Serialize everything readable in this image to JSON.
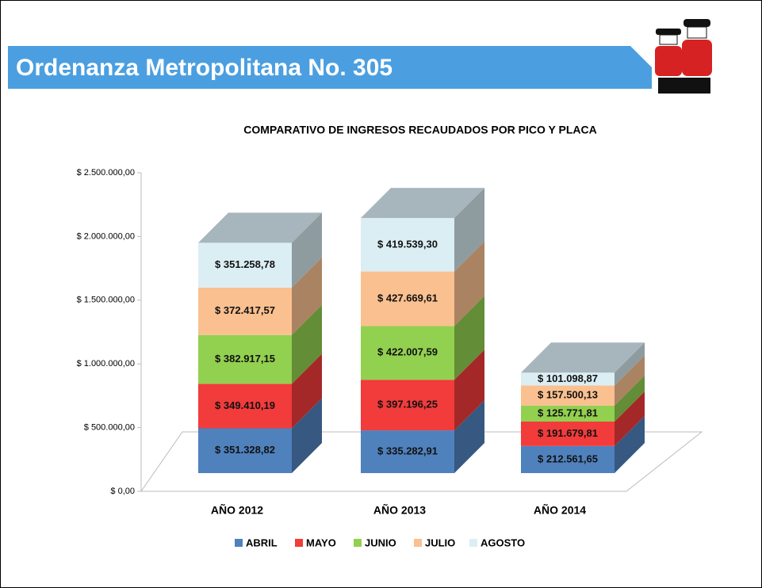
{
  "header": {
    "title": "Ordenanza Metropolitana No. 305"
  },
  "chart_data": {
    "type": "bar3d_stacked",
    "title": "COMPARATIVO DE INGRESOS RECAUDADOS POR PICO Y PLACA",
    "categories": [
      "AÑO 2012",
      "AÑO 2013",
      "AÑO 2014"
    ],
    "series": [
      {
        "name": "ABRIL",
        "color": "#4f81bd",
        "values": [
          351328.82,
          335282.91,
          212561.65
        ],
        "value_labels": [
          "$ 351.328,82",
          "$ 335.282,91",
          "$ 212.561,65"
        ]
      },
      {
        "name": "MAYO",
        "color": "#f23b3b",
        "values": [
          349410.19,
          397196.25,
          191679.81
        ],
        "value_labels": [
          "$ 349.410,19",
          "$ 397.196,25",
          "$ 191.679,81"
        ]
      },
      {
        "name": "JUNIO",
        "color": "#92d050",
        "values": [
          382917.15,
          422007.59,
          125771.81
        ],
        "value_labels": [
          "$ 382.917,15",
          "$ 422.007,59",
          "$ 125.771,81"
        ]
      },
      {
        "name": "JULIO",
        "color": "#fac090",
        "values": [
          372417.57,
          427669.61,
          157500.13
        ],
        "value_labels": [
          "$ 372.417,57",
          "$ 427.669,61",
          "$ 157.500,13"
        ]
      },
      {
        "name": "AGOSTO",
        "color": "#dbeef4",
        "values": [
          351258.78,
          419539.3,
          101098.87
        ],
        "value_labels": [
          "$ 351.258,78",
          "$ 419.539,30",
          "$ 101.098,87"
        ]
      }
    ],
    "ylim": [
      0,
      2500000
    ],
    "yticks": [
      {
        "value": 0,
        "label": "$ 0,00"
      },
      {
        "value": 500000,
        "label": "$ 500.000,00"
      },
      {
        "value": 1000000,
        "label": "$ 1.000.000,00"
      },
      {
        "value": 1500000,
        "label": "$ 1.500.000,00"
      },
      {
        "value": 2000000,
        "label": "$ 2.000.000,00"
      },
      {
        "value": 2500000,
        "label": "$ 2.500.000,00"
      }
    ],
    "legend": "bottom"
  }
}
